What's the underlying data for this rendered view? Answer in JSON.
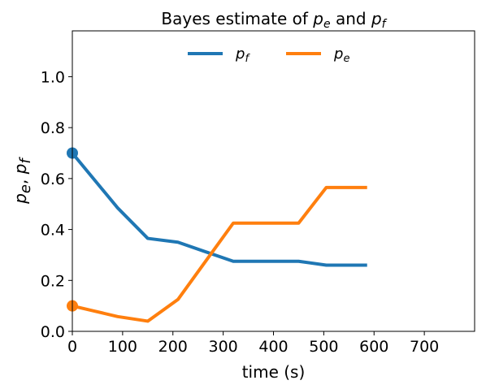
{
  "chart_data": {
    "type": "line",
    "title": {
      "prefix": "Bayes estimate of ",
      "var1": "p",
      "var1_sub": "e",
      "middle": " and ",
      "var2": "p",
      "var2_sub": "f"
    },
    "xlabel": "time (s)",
    "ylabel": {
      "var1": "p",
      "var1_sub": "e",
      "sep": ", ",
      "var2": "p",
      "var2_sub": "f"
    },
    "xlim": [
      0,
      800
    ],
    "ylim": [
      0,
      1.18
    ],
    "xticks": [
      0,
      100,
      200,
      300,
      400,
      500,
      600,
      700
    ],
    "yticks": [
      0.0,
      0.2,
      0.4,
      0.6,
      0.8,
      1.0
    ],
    "xtick_labels": [
      "0",
      "100",
      "200",
      "300",
      "400",
      "500",
      "600",
      "700"
    ],
    "ytick_labels": [
      "0.0",
      "0.2",
      "0.4",
      "0.6",
      "0.8",
      "1.0"
    ],
    "grid": false,
    "legend_placement": "top-center",
    "series": [
      {
        "name": "p",
        "name_sub": "f",
        "color": "#1f77b4",
        "x": [
          0,
          90,
          150,
          210,
          320,
          450,
          505,
          583
        ],
        "y": [
          0.7,
          0.485,
          0.365,
          0.35,
          0.275,
          0.275,
          0.26,
          0.26
        ],
        "marker_start": true
      },
      {
        "name": "p",
        "name_sub": "e",
        "color": "#ff7f0e",
        "x": [
          0,
          90,
          150,
          210,
          320,
          450,
          505,
          583
        ],
        "y": [
          0.1,
          0.058,
          0.04,
          0.125,
          0.425,
          0.425,
          0.565,
          0.565
        ],
        "marker_start": true
      }
    ]
  }
}
